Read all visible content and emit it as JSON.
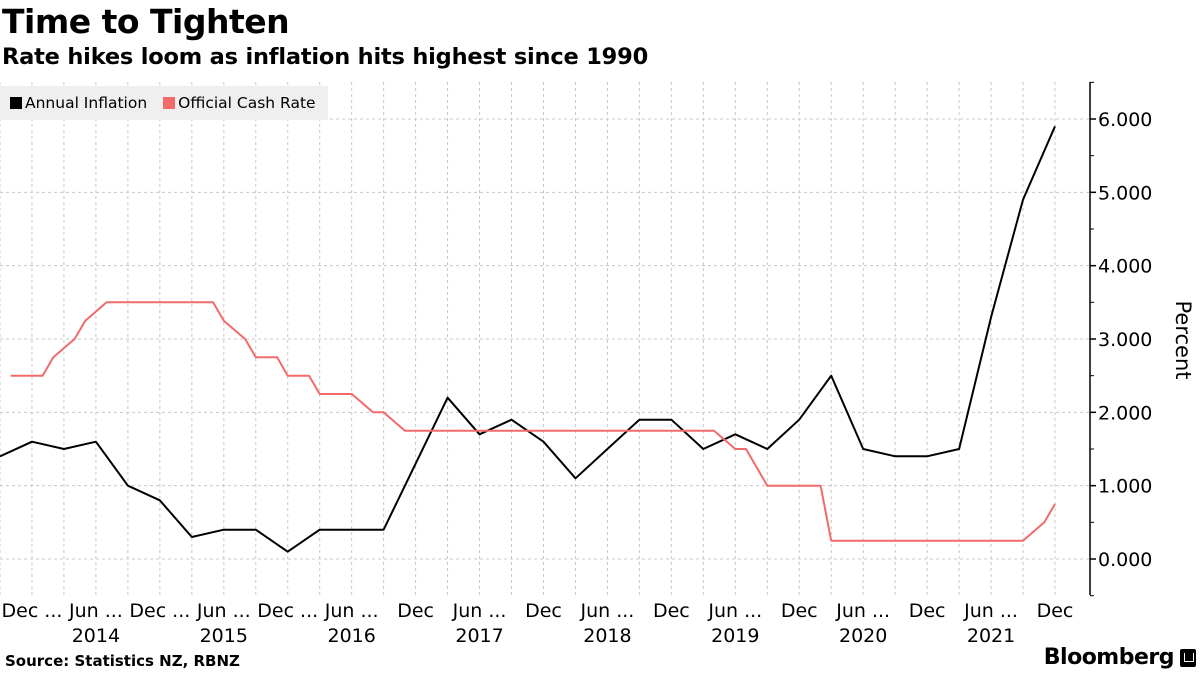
{
  "header": {
    "title": "Time to Tighten",
    "subtitle": "Rate hikes loom as inflation hits highest since 1990"
  },
  "footer": {
    "source": "Source: Statistics NZ, RBNZ",
    "brand": "Bloomberg"
  },
  "chart_data": {
    "type": "line",
    "title": "Time to Tighten",
    "subtitle": "Rate hikes loom as inflation hits highest since 1990",
    "xlabel": "",
    "ylabel": "Percent",
    "y_axis_side": "right",
    "ylim": [
      -0.5,
      6.5
    ],
    "yticks": [
      0,
      1,
      2,
      3,
      4,
      5,
      6
    ],
    "ytick_labels": [
      "0.000",
      "1.000",
      "2.000",
      "3.000",
      "4.000",
      "5.000",
      "6.000"
    ],
    "grid": true,
    "legend_position": "top-left",
    "x_range": [
      "2013-09",
      "2021-12"
    ],
    "xtick_labels": [
      {
        "label": "Dec ...",
        "date": "2013-12"
      },
      {
        "label": "Jun ...",
        "date": "2014-06",
        "year": "2014"
      },
      {
        "label": "Dec ...",
        "date": "2014-12"
      },
      {
        "label": "Jun ...",
        "date": "2015-06",
        "year": "2015"
      },
      {
        "label": "Dec ...",
        "date": "2015-12"
      },
      {
        "label": "Jun ...",
        "date": "2016-06",
        "year": "2016"
      },
      {
        "label": "Dec",
        "date": "2016-12"
      },
      {
        "label": "Jun ...",
        "date": "2017-06",
        "year": "2017"
      },
      {
        "label": "Dec",
        "date": "2017-12"
      },
      {
        "label": "Jun ...",
        "date": "2018-06",
        "year": "2018"
      },
      {
        "label": "Dec",
        "date": "2018-12"
      },
      {
        "label": "Jun ...",
        "date": "2019-06",
        "year": "2019"
      },
      {
        "label": "Dec",
        "date": "2019-12"
      },
      {
        "label": "Jun ...",
        "date": "2020-06",
        "year": "2020"
      },
      {
        "label": "Dec",
        "date": "2020-12"
      },
      {
        "label": "Jun ...",
        "date": "2021-06",
        "year": "2021"
      },
      {
        "label": "Dec",
        "date": "2021-12"
      }
    ],
    "series": [
      {
        "name": "Annual Inflation",
        "color": "#000000",
        "points": [
          [
            "2013-09",
            1.4
          ],
          [
            "2013-12",
            1.6
          ],
          [
            "2014-03",
            1.5
          ],
          [
            "2014-06",
            1.6
          ],
          [
            "2014-09",
            1.0
          ],
          [
            "2014-12",
            0.8
          ],
          [
            "2015-03",
            0.3
          ],
          [
            "2015-06",
            0.4
          ],
          [
            "2015-09",
            0.4
          ],
          [
            "2015-12",
            0.1
          ],
          [
            "2016-03",
            0.4
          ],
          [
            "2016-06",
            0.4
          ],
          [
            "2016-09",
            0.4
          ],
          [
            "2016-12",
            1.3
          ],
          [
            "2017-03",
            2.2
          ],
          [
            "2017-06",
            1.7
          ],
          [
            "2017-09",
            1.9
          ],
          [
            "2017-12",
            1.6
          ],
          [
            "2018-03",
            1.1
          ],
          [
            "2018-06",
            1.5
          ],
          [
            "2018-09",
            1.9
          ],
          [
            "2018-12",
            1.9
          ],
          [
            "2019-03",
            1.5
          ],
          [
            "2019-06",
            1.7
          ],
          [
            "2019-09",
            1.5
          ],
          [
            "2019-12",
            1.9
          ],
          [
            "2020-03",
            2.5
          ],
          [
            "2020-06",
            1.5
          ],
          [
            "2020-09",
            1.4
          ],
          [
            "2020-12",
            1.4
          ],
          [
            "2021-03",
            1.5
          ],
          [
            "2021-06",
            3.3
          ],
          [
            "2021-09",
            4.9
          ],
          [
            "2021-12",
            5.9
          ]
        ]
      },
      {
        "name": "Official Cash Rate",
        "color": "#f26b6b",
        "points": [
          [
            "2013-10",
            2.5
          ],
          [
            "2014-01",
            2.5
          ],
          [
            "2014-02",
            2.75
          ],
          [
            "2014-04",
            3.0
          ],
          [
            "2014-05",
            3.25
          ],
          [
            "2014-07",
            3.5
          ],
          [
            "2015-05",
            3.5
          ],
          [
            "2015-06",
            3.25
          ],
          [
            "2015-08",
            3.0
          ],
          [
            "2015-09",
            2.75
          ],
          [
            "2015-11",
            2.75
          ],
          [
            "2015-12",
            2.5
          ],
          [
            "2016-02",
            2.5
          ],
          [
            "2016-03",
            2.25
          ],
          [
            "2016-06",
            2.25
          ],
          [
            "2016-08",
            2.0
          ],
          [
            "2016-09",
            2.0
          ],
          [
            "2016-11",
            1.75
          ],
          [
            "2019-04",
            1.75
          ],
          [
            "2019-06",
            1.5
          ],
          [
            "2019-07",
            1.5
          ],
          [
            "2019-09",
            1.0
          ],
          [
            "2020-02",
            1.0
          ],
          [
            "2020-03",
            0.25
          ],
          [
            "2021-09",
            0.25
          ],
          [
            "2021-11",
            0.5
          ],
          [
            "2021-12",
            0.75
          ]
        ]
      }
    ]
  }
}
